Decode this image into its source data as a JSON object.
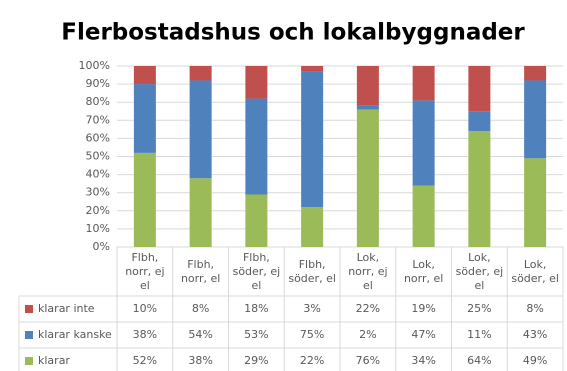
{
  "chart_data": {
    "type": "stacked_bar",
    "title": "Flerbostadshus och lokalbyggnader",
    "categories": [
      "Flbh, norr, ej el",
      "Flbh, norr, el",
      "Flbh, söder, ej el",
      "Flbh, söder, el",
      "Lok, norr, ej el",
      "Lok, norr, el",
      "Lok, söder, ej el",
      "Lok, söder, el"
    ],
    "series": [
      {
        "name": "klarar inte",
        "color": "#c0504d",
        "values": [
          10,
          8,
          18,
          3,
          22,
          19,
          25,
          8
        ],
        "value_labels": [
          "10%",
          "8%",
          "18%",
          "3%",
          "22%",
          "19%",
          "25%",
          "8%"
        ]
      },
      {
        "name": "klarar kanske",
        "color": "#4f81bd",
        "values": [
          38,
          54,
          53,
          75,
          2,
          47,
          11,
          43
        ],
        "value_labels": [
          "38%",
          "54%",
          "53%",
          "75%",
          "2%",
          "47%",
          "11%",
          "43%"
        ]
      },
      {
        "name": "klarar",
        "color": "#9bbb59",
        "values": [
          52,
          38,
          29,
          22,
          76,
          34,
          64,
          49
        ],
        "value_labels": [
          "52%",
          "38%",
          "29%",
          "22%",
          "76%",
          "34%",
          "64%",
          "49%"
        ]
      }
    ],
    "ylim": [
      0,
      100
    ],
    "yticks": [
      {
        "value": 0,
        "label": "0%"
      },
      {
        "value": 10,
        "label": "10%"
      },
      {
        "value": 20,
        "label": "20%"
      },
      {
        "value": 30,
        "label": "30%"
      },
      {
        "value": 40,
        "label": "40%"
      },
      {
        "value": 50,
        "label": "50%"
      },
      {
        "value": 60,
        "label": "60%"
      },
      {
        "value": 70,
        "label": "70%"
      },
      {
        "value": 80,
        "label": "80%"
      },
      {
        "value": 90,
        "label": "90%"
      },
      {
        "value": 100,
        "label": "100%"
      }
    ],
    "grid": true
  }
}
